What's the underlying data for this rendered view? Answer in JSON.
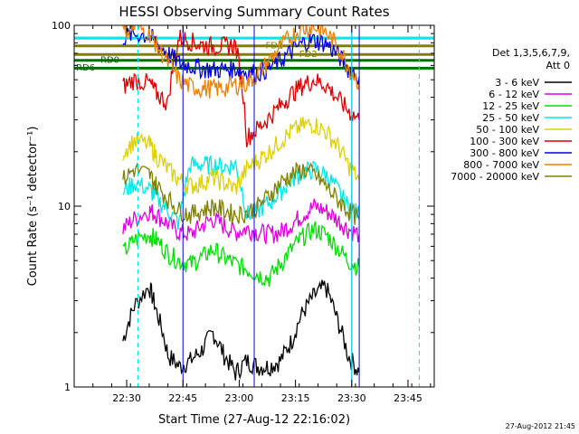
{
  "chart_data": {
    "type": "line",
    "title": "HESSI Observing Summary Count Rates",
    "xlabel": "Start Time (27-Aug-12 22:16:02)",
    "ylabel": "Count Rate (s⁻¹ detector⁻¹)",
    "y_scale": "log",
    "ylim": [
      1,
      100
    ],
    "xlim_minutes_after_22_16_02": [
      0,
      96
    ],
    "x_ticks": [
      {
        "t": 14,
        "label": "22:30"
      },
      {
        "t": 29,
        "label": "22:45"
      },
      {
        "t": 44,
        "label": "23:00"
      },
      {
        "t": 59,
        "label": "23:15"
      },
      {
        "t": 74,
        "label": "23:30"
      },
      {
        "t": 89,
        "label": "23:45"
      }
    ],
    "y_ticks": [
      {
        "v": 1,
        "label": "1"
      },
      {
        "v": 10,
        "label": "10"
      },
      {
        "v": 100,
        "label": "100"
      }
    ],
    "legend_header": [
      "Det 1,3,5,6,7,9,",
      "Att 0"
    ],
    "legend_placement": "right",
    "series": [
      {
        "name": "3 - 6 keV",
        "color": "#000000",
        "x": [
          13,
          16,
          20,
          22,
          25,
          28,
          31,
          34,
          37,
          40,
          43,
          46,
          49,
          52,
          55,
          58,
          61,
          64,
          67,
          70,
          73,
          76
        ],
        "values": [
          1.8,
          2.8,
          3.6,
          2.6,
          1.5,
          1.3,
          1.4,
          1.6,
          2.0,
          1.5,
          1.2,
          1.4,
          1.3,
          1.3,
          1.4,
          1.8,
          2.6,
          3.2,
          3.6,
          2.4,
          1.5,
          1.2
        ]
      },
      {
        "name": "6 - 12 keV",
        "color": "#e000e0",
        "x": [
          13,
          16,
          20,
          22,
          25,
          28,
          31,
          34,
          37,
          40,
          43,
          46,
          49,
          52,
          55,
          58,
          61,
          64,
          67,
          70,
          73,
          76
        ],
        "values": [
          7.5,
          8.5,
          9.5,
          9.0,
          8.0,
          7.2,
          7.0,
          7.8,
          8.5,
          7.8,
          7.2,
          7.5,
          7.2,
          7.0,
          7.2,
          8.0,
          9.0,
          10.0,
          9.5,
          8.5,
          7.5,
          7.0
        ]
      },
      {
        "name": "12 - 25 keV",
        "color": "#00e000",
        "x": [
          13,
          16,
          20,
          22,
          25,
          28,
          31,
          34,
          37,
          40,
          43,
          46,
          49,
          52,
          55,
          58,
          61,
          64,
          67,
          70,
          73,
          76
        ],
        "values": [
          5.5,
          6.5,
          7.0,
          6.5,
          5.5,
          5.0,
          4.8,
          5.2,
          5.8,
          5.2,
          4.8,
          4.5,
          4.2,
          4.0,
          4.8,
          5.8,
          6.8,
          7.5,
          7.0,
          6.0,
          5.0,
          4.6
        ]
      },
      {
        "name": "25 - 50 keV",
        "color": "#00e8e8",
        "x": [
          13,
          16,
          20,
          22,
          25,
          28,
          31,
          34,
          37,
          40,
          43,
          46,
          49,
          52,
          55,
          58,
          61,
          64,
          67,
          70,
          73,
          76
        ],
        "values": [
          12.0,
          13.5,
          12.5,
          11.0,
          9.5,
          8.0,
          17.0,
          17.0,
          17.0,
          16.5,
          17.0,
          9.0,
          9.5,
          10.5,
          12.0,
          14.0,
          15.5,
          16.0,
          15.0,
          12.5,
          10.0,
          9.0
        ]
      },
      {
        "name": "50 - 100 keV",
        "color": "#e0d000",
        "x": [
          13,
          16,
          20,
          22,
          25,
          28,
          31,
          34,
          37,
          40,
          43,
          46,
          49,
          52,
          55,
          58,
          61,
          64,
          67,
          70,
          73,
          76
        ],
        "values": [
          20.0,
          23.0,
          22.0,
          19.0,
          16.0,
          14.0,
          13.0,
          13.5,
          14.5,
          13.5,
          12.5,
          16.0,
          18.0,
          20.0,
          23.0,
          26.0,
          28.0,
          28.5,
          26.0,
          22.0,
          17.0,
          14.0
        ]
      },
      {
        "name": "100 - 300 keV",
        "color": "#e00000",
        "x": [
          13,
          16,
          20,
          22,
          25,
          28,
          31,
          34,
          37,
          40,
          43,
          46,
          49,
          52,
          55,
          58,
          61,
          64,
          67,
          70,
          73,
          76
        ],
        "values": [
          46.0,
          50.0,
          48.0,
          42.0,
          37.0,
          86.0,
          82.0,
          78.0,
          77.0,
          77.0,
          78.0,
          24.0,
          27.0,
          31.0,
          36.0,
          42.0,
          47.0,
          50.0,
          47.0,
          40.0,
          34.0,
          30.0
        ]
      },
      {
        "name": "300 - 800 keV",
        "color": "#0000e8",
        "x": [
          13,
          16,
          20,
          22,
          25,
          28,
          31,
          34,
          37,
          40,
          43,
          46,
          49,
          52,
          55,
          58,
          61,
          64,
          67,
          70,
          73,
          76
        ],
        "values": [
          86.0,
          90.0,
          88.0,
          80.0,
          70.0,
          62.0,
          60.0,
          58.0,
          57.0,
          57.0,
          58.0,
          55.0,
          55.0,
          58.0,
          64.0,
          72.0,
          80.0,
          83.0,
          80.0,
          70.0,
          58.0,
          52.0
        ]
      },
      {
        "name": "800 - 7000 keV",
        "color": "#f08000",
        "x": [
          13,
          16,
          20,
          22,
          25,
          28,
          31,
          34,
          37,
          40,
          43,
          46,
          49,
          52,
          55,
          58,
          61,
          64,
          67,
          70,
          73,
          76
        ],
        "values": [
          92.0,
          98.0,
          92.0,
          78.0,
          62.0,
          50.0,
          46.0,
          45.0,
          45.0,
          45.0,
          47.0,
          48.0,
          54.0,
          64.0,
          76.0,
          88.0,
          96.0,
          98.0,
          92.0,
          78.0,
          60.0,
          48.0
        ]
      },
      {
        "name": "7000 - 20000 keV",
        "color": "#808000",
        "x": [
          13,
          16,
          20,
          22,
          25,
          28,
          31,
          34,
          37,
          40,
          43,
          46,
          49,
          52,
          55,
          58,
          61,
          64,
          67,
          70,
          73,
          76
        ],
        "values": [
          14.0,
          16.0,
          15.0,
          13.0,
          11.0,
          9.5,
          9.0,
          9.5,
          10.0,
          9.5,
          9.0,
          9.2,
          10.0,
          11.5,
          13.5,
          15.0,
          16.0,
          15.0,
          13.0,
          11.0,
          9.5,
          8.5
        ]
      }
    ],
    "annotations": [
      {
        "text": "FD1",
        "x": 51,
        "y": 78,
        "color": "#808000"
      },
      {
        "text": "FD2",
        "x": 60,
        "y": 70,
        "color": "#808000"
      },
      {
        "text": "RD0",
        "x": 7,
        "y": 65,
        "color": "#006400"
      },
      {
        "text": "RD6",
        "x": 0.5,
        "y": 59,
        "color": "#006400"
      }
    ],
    "flag_lines": [
      {
        "color": "#00e8e8",
        "x1": 0,
        "x2": 96,
        "y": 85
      },
      {
        "color": "#808000",
        "x1": 0,
        "x2": 96,
        "y": 77
      },
      {
        "color": "#808000",
        "x1": 0,
        "x2": 96,
        "y": 69
      },
      {
        "color": "#007000",
        "x1": 0,
        "x2": 96,
        "y": 64
      },
      {
        "color": "#007000",
        "x1": 0,
        "x2": 96,
        "y": 58
      }
    ],
    "cyan_segments": [
      {
        "x1": 0,
        "x2": 13
      },
      {
        "x1": 76,
        "x2": 96
      }
    ],
    "gaps": [
      {
        "x": 29,
        "style": "solid"
      },
      {
        "x": 48,
        "style": "solid"
      },
      {
        "x": 74,
        "style": "solid"
      },
      {
        "x": 76,
        "style": "solid"
      }
    ],
    "cyan_vertical_lines": [
      {
        "x": 0,
        "style": "solid"
      },
      {
        "x": 17,
        "style": "dashed"
      },
      {
        "x": 74,
        "style": "solid"
      },
      {
        "x": 92,
        "style": "dashed"
      }
    ]
  },
  "footer": {
    "date_stamp": "27-Aug-2012 21:45"
  },
  "colors": {
    "background": "#ffffff",
    "axes": "#000000"
  }
}
